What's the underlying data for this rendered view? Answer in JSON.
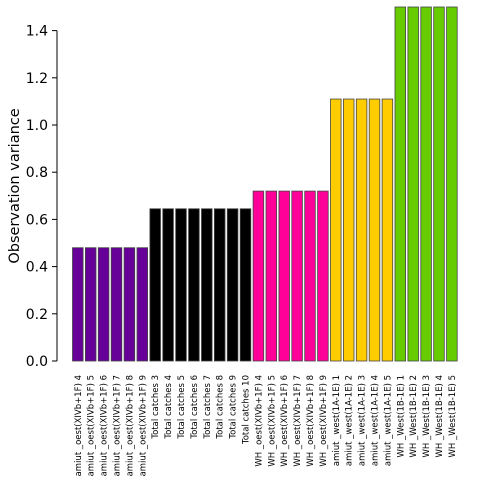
{
  "chart_data": {
    "type": "bar",
    "xlabel": "",
    "ylabel": "Observation variance",
    "ylim": [
      0,
      1.5
    ],
    "yticks": [
      0.0,
      0.2,
      0.4,
      0.6,
      0.8,
      1.0,
      1.2,
      1.4
    ],
    "ytick_labels": [
      "0.0",
      "0.2",
      "0.4",
      "0.6",
      "0.8",
      "1.0",
      "1.2",
      "1.4"
    ],
    "grid": false,
    "categories": [
      "amiut _oest(XIVb+1F) 4",
      "amiut _oest(XIVb+1F) 5",
      "amiut _oest(XIVb+1F) 6",
      "amiut _oest(XIVb+1F) 7",
      "amiut _oest(XIVb+1F) 8",
      "amiut _oest(XIVb+1F) 9",
      "Total catches 3",
      "Total catches 4",
      "Total catches 5",
      "Total catches 6",
      "Total catches 7",
      "Total catches 8",
      "Total catches 9",
      "Total catches 10",
      "WH _oest(XIVb+1F) 4",
      "WH _oest(XIVb+1F) 5",
      "WH _oest(XIVb+1F) 6",
      "WH _oest(XIVb+1F) 7",
      "WH _oest(XIVb+1F) 8",
      "WH _oest(XIVb+1F) 9",
      "amiut _west(1A-1E) 1",
      "amiut _west(1A-1E) 2",
      "amiut _west(1A-1E) 3",
      "amiut _west(1A-1E) 4",
      "amiut _west(1A-1E) 5",
      "WH _West(1B-1E) 1",
      "WH _West(1B-1E) 2",
      "WH _West(1B-1E) 3",
      "WH _West(1B-1E) 4",
      "WH _West(1B-1E) 5"
    ],
    "values": [
      0.48,
      0.48,
      0.48,
      0.48,
      0.48,
      0.48,
      0.645,
      0.645,
      0.645,
      0.645,
      0.645,
      0.645,
      0.645,
      0.645,
      0.72,
      0.72,
      0.72,
      0.72,
      0.72,
      0.72,
      1.11,
      1.11,
      1.11,
      1.11,
      1.11,
      1.5,
      1.5,
      1.5,
      1.5,
      1.5
    ],
    "colors": [
      "#660099",
      "#660099",
      "#660099",
      "#660099",
      "#660099",
      "#660099",
      "#000000",
      "#000000",
      "#000000",
      "#000000",
      "#000000",
      "#000000",
      "#000000",
      "#000000",
      "#ff0099",
      "#ff0099",
      "#ff0099",
      "#ff0099",
      "#ff0099",
      "#ff0099",
      "#ffcc00",
      "#ffcc00",
      "#ffcc00",
      "#ffcc00",
      "#ffcc00",
      "#66cc00",
      "#66cc00",
      "#66cc00",
      "#66cc00",
      "#66cc00"
    ],
    "bar_edge_color": "#444444"
  }
}
